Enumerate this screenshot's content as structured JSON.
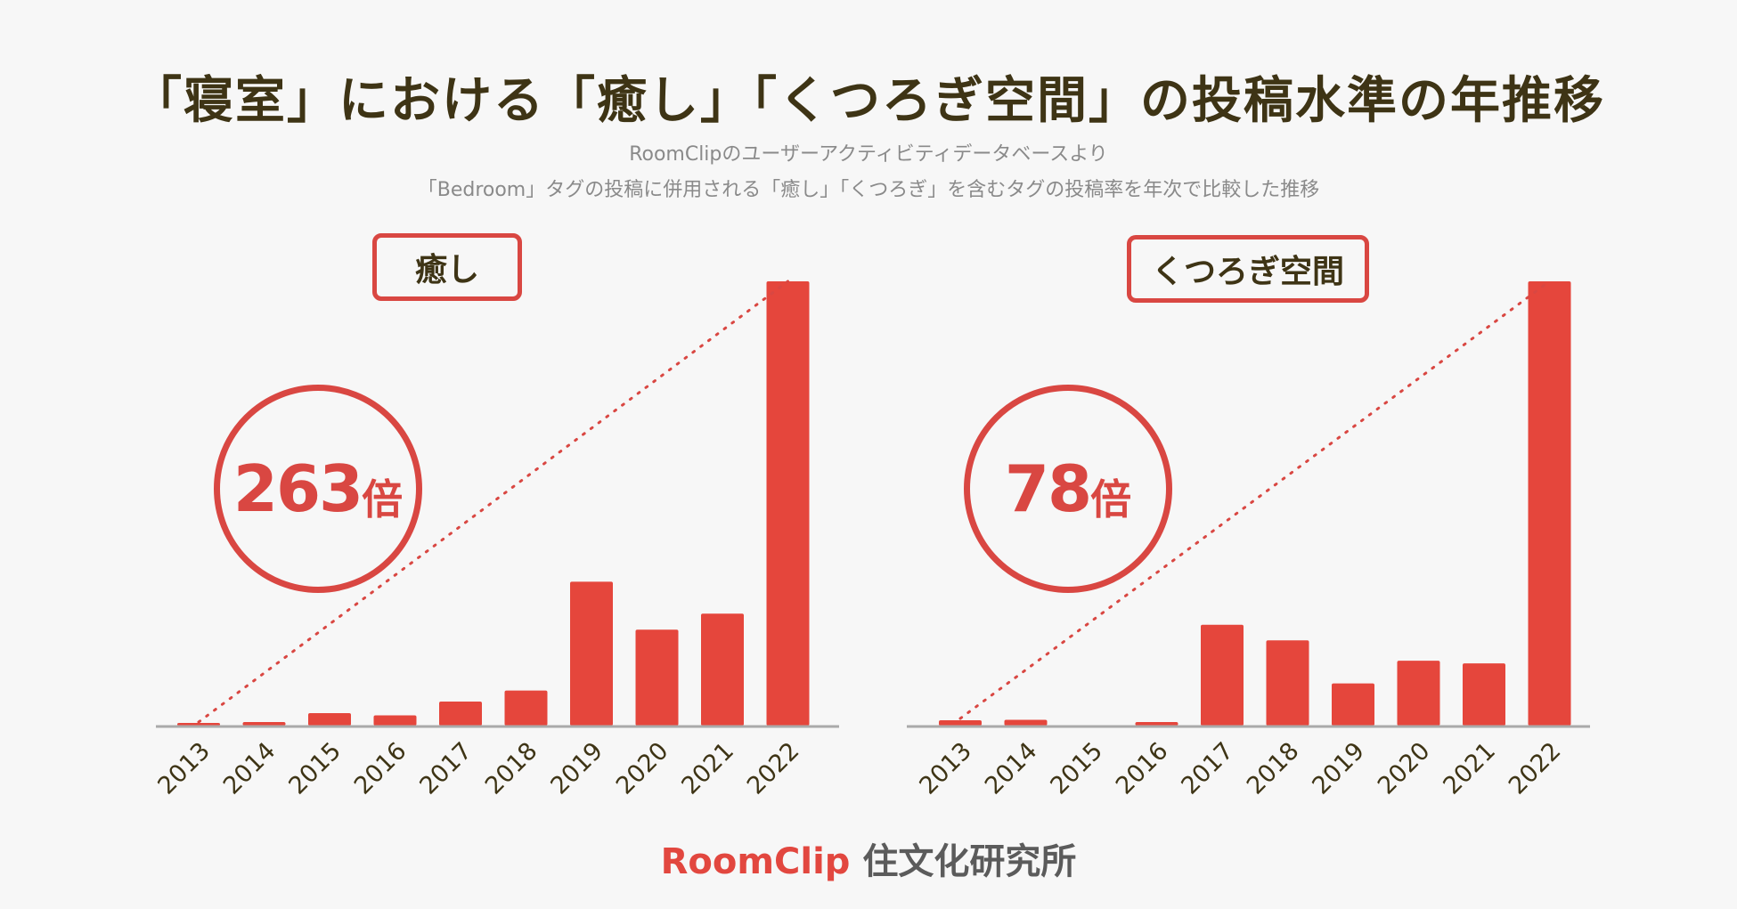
{
  "title": "「寝室」における「癒し」「くつろぎ空間」の投稿水準の年推移",
  "subtitle_line1": "RoomClipのユーザーアクティビティデータベースより",
  "subtitle_line2": "「Bedroom」タグの投稿に併用される「癒し」「くつろぎ」を含むタグの投稿率を年次で比較した推移",
  "colors": {
    "bar": "#e5463c",
    "accent": "#d94742",
    "axis": "#aaaaaa",
    "text": "#3e3415"
  },
  "chart_data": [
    {
      "type": "bar",
      "title": "癒し",
      "multiplier_value": "263",
      "multiplier_unit": "倍",
      "categories": [
        "2013",
        "2014",
        "2015",
        "2016",
        "2017",
        "2018",
        "2019",
        "2020",
        "2021",
        "2022"
      ],
      "values": [
        0.4,
        0.8,
        2.8,
        2.3,
        5.4,
        7.9,
        32.4,
        21.6,
        25.2,
        100
      ],
      "xlabel": "",
      "ylabel": "",
      "ylim": [
        0,
        100
      ],
      "grid": false,
      "trend_line": "dotted from 2013 to 2022"
    },
    {
      "type": "bar",
      "title": "くつろぎ空間",
      "multiplier_value": "78",
      "multiplier_unit": "倍",
      "categories": [
        "2013",
        "2014",
        "2015",
        "2016",
        "2017",
        "2018",
        "2019",
        "2020",
        "2021",
        "2022"
      ],
      "values": [
        1.2,
        1.3,
        0,
        0.8,
        22.7,
        19.2,
        9.5,
        14.6,
        14.0,
        100
      ],
      "xlabel": "",
      "ylabel": "",
      "ylim": [
        0,
        100
      ],
      "grid": false,
      "trend_line": "dotted from 2013 to 2022"
    }
  ],
  "footer": {
    "brand": "RoomClip",
    "org": "住文化研究所"
  }
}
